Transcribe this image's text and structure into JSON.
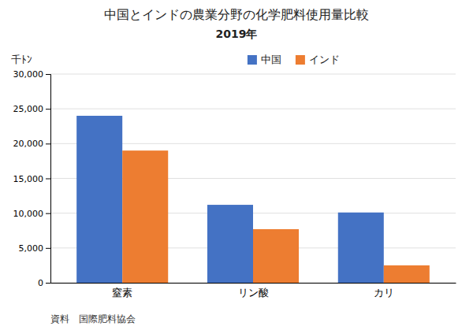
{
  "chart_data": {
    "type": "bar",
    "title": "中国とインドの農業分野の化学肥料使用量比較",
    "subtitle": "2019年",
    "ylabel": "千ﾄﾝ",
    "source": "資料　国際肥料協会",
    "categories": [
      "窒素",
      "リン酸",
      "カリ"
    ],
    "series": [
      {
        "name": "中国",
        "color": "#4472C4",
        "values": [
          24000,
          11200,
          10100
        ]
      },
      {
        "name": "インド",
        "color": "#ED7D31",
        "values": [
          19000,
          7700,
          2500
        ]
      }
    ],
    "ylim": [
      0,
      30000
    ],
    "yticks": [
      0,
      {
        "value": 5000,
        "label": "5,000"
      },
      {
        "value": 10000,
        "label": "10,000"
      },
      {
        "value": 15000,
        "label": "15,000"
      },
      {
        "value": 20000,
        "label": "20,000"
      },
      {
        "value": 25000,
        "label": "25,000"
      },
      {
        "value": 30000,
        "label": "30,000"
      }
    ],
    "grid": true,
    "legend": "top"
  }
}
